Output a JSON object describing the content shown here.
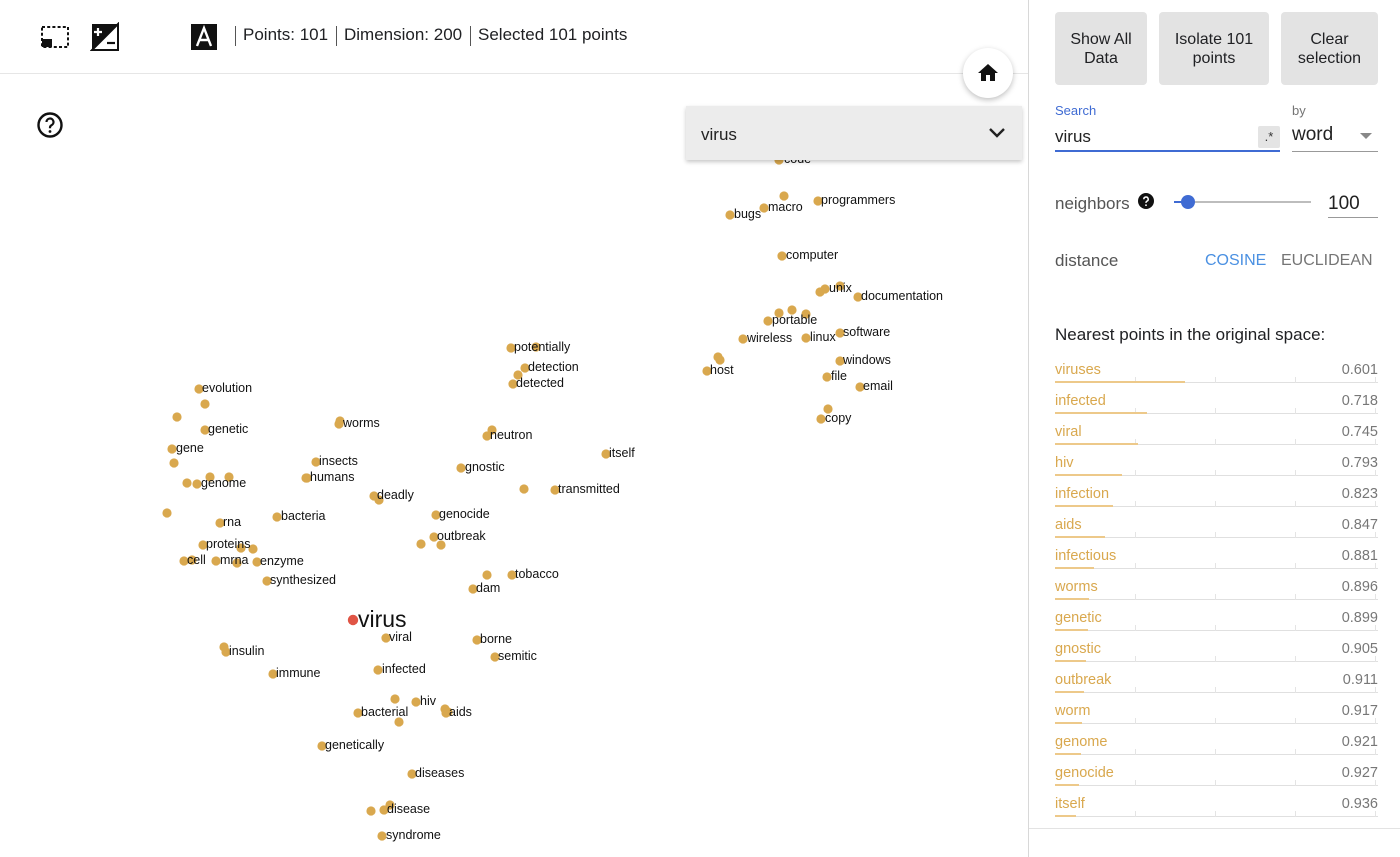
{
  "toolbar": {
    "icons": [
      "select-rectangle-icon",
      "night-mode-icon",
      "dark-theme-icon",
      "label-text-icon"
    ],
    "points_label": "Points: 101",
    "dimension_label": "Dimension: 200",
    "selected_label": "Selected 101 points"
  },
  "projection": {
    "help_icon": "help-circle-icon",
    "home_icon": "home-icon",
    "selected_word": "virus",
    "point_color": "#d9a84e",
    "highlight_color": "#e05545",
    "labels": [
      {
        "text": "code"
      },
      {
        "text": "programmers"
      },
      {
        "text": "bugs"
      },
      {
        "text": "macro"
      },
      {
        "text": "computer"
      },
      {
        "text": "unix"
      },
      {
        "text": "documentation"
      },
      {
        "text": "portable"
      },
      {
        "text": "software"
      },
      {
        "text": "wireless"
      },
      {
        "text": "linux"
      },
      {
        "text": "windows"
      },
      {
        "text": "host"
      },
      {
        "text": "file"
      },
      {
        "text": "email"
      },
      {
        "text": "copy"
      },
      {
        "text": "potentially"
      },
      {
        "text": "detection"
      },
      {
        "text": "detected"
      },
      {
        "text": "evolution"
      },
      {
        "text": "genetic"
      },
      {
        "text": "worms"
      },
      {
        "text": "neutron"
      },
      {
        "text": "itself"
      },
      {
        "text": "gene"
      },
      {
        "text": "insects"
      },
      {
        "text": "gnostic"
      },
      {
        "text": "humans"
      },
      {
        "text": "genome"
      },
      {
        "text": "deadly"
      },
      {
        "text": "transmitted"
      },
      {
        "text": "bacteria"
      },
      {
        "text": "genocide"
      },
      {
        "text": "rna"
      },
      {
        "text": "outbreak"
      },
      {
        "text": "proteins"
      },
      {
        "text": "cell"
      },
      {
        "text": "mrna"
      },
      {
        "text": "enzyme"
      },
      {
        "text": "tobacco"
      },
      {
        "text": "synthesized"
      },
      {
        "text": "dam"
      },
      {
        "text": "virus"
      },
      {
        "text": "viral"
      },
      {
        "text": "borne"
      },
      {
        "text": "insulin"
      },
      {
        "text": "semitic"
      },
      {
        "text": "infected"
      },
      {
        "text": "immune"
      },
      {
        "text": "hiv"
      },
      {
        "text": "bacterial"
      },
      {
        "text": "aids"
      },
      {
        "text": "genetically"
      },
      {
        "text": "diseases"
      },
      {
        "text": "disease"
      },
      {
        "text": "syndrome"
      }
    ]
  },
  "panel": {
    "show_all_label": "Show All Data",
    "isolate_label": "Isolate 101 points",
    "clear_label": "Clear selection",
    "search_label": "Search",
    "search_value": "virus",
    "regex_label": ".*",
    "by_label": "by",
    "by_value": "word",
    "neighbors_label": "neighbors",
    "neighbors_value": "100",
    "neighbors_fraction": 0.1,
    "distance_label": "distance",
    "cosine_label": "COSINE",
    "euclidean_label": "EUCLIDEAN",
    "active_color": "#4a90e2",
    "nearest_title": "Nearest points in the original space:",
    "nearest": [
      {
        "word": "viruses",
        "value": "0.601"
      },
      {
        "word": "infected",
        "value": "0.718"
      },
      {
        "word": "viral",
        "value": "0.745"
      },
      {
        "word": "hiv",
        "value": "0.793"
      },
      {
        "word": "infection",
        "value": "0.823"
      },
      {
        "word": "aids",
        "value": "0.847"
      },
      {
        "word": "infectious",
        "value": "0.881"
      },
      {
        "word": "worms",
        "value": "0.896"
      },
      {
        "word": "genetic",
        "value": "0.899"
      },
      {
        "word": "gnostic",
        "value": "0.905"
      },
      {
        "word": "outbreak",
        "value": "0.911"
      },
      {
        "word": "worm",
        "value": "0.917"
      },
      {
        "word": "genome",
        "value": "0.921"
      },
      {
        "word": "genocide",
        "value": "0.927"
      },
      {
        "word": "itself",
        "value": "0.936"
      }
    ]
  }
}
